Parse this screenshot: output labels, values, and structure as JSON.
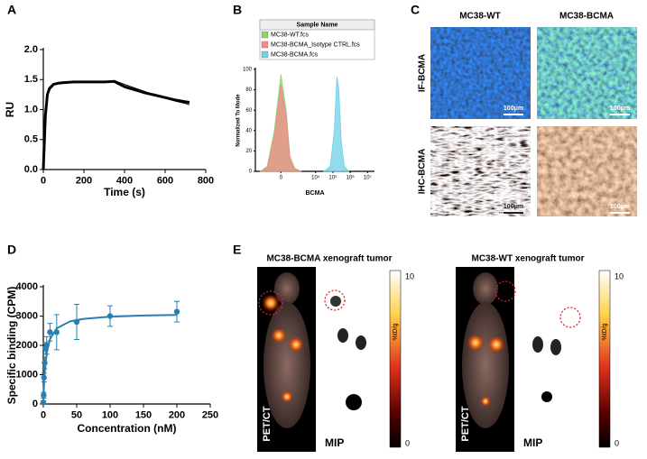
{
  "chart_data": [
    {
      "type": "line",
      "label": "A",
      "xlabel": "Time (s)",
      "ylabel": "RU",
      "x": [
        0,
        10,
        20,
        30,
        50,
        75,
        100,
        150,
        200,
        250,
        300,
        350,
        360,
        400,
        450,
        500,
        550,
        600,
        650,
        700,
        720
      ],
      "series": [
        {
          "color": "#000000",
          "line_width": 3,
          "values": [
            0,
            0.9,
            1.25,
            1.35,
            1.42,
            1.44,
            1.45,
            1.46,
            1.46,
            1.46,
            1.46,
            1.47,
            1.45,
            1.38,
            1.33,
            1.28,
            1.24,
            1.2,
            1.16,
            1.13,
            1.12
          ]
        },
        {
          "color": "#000000",
          "line_width": 1,
          "values": [
            0,
            0.95,
            1.28,
            1.37,
            1.43,
            1.45,
            1.46,
            1.46,
            1.47,
            1.47,
            1.47,
            1.47,
            1.47,
            1.42,
            1.36,
            1.3,
            1.24,
            1.19,
            1.14,
            1.1,
            1.08
          ]
        }
      ],
      "xlim": [
        0,
        800
      ],
      "xticks": [
        0,
        200,
        400,
        600,
        800
      ],
      "ylim": [
        0,
        2.0
      ],
      "yticks": [
        {
          "value": 0,
          "label": "0.0"
        },
        {
          "value": 0.5,
          "label": "0.5"
        },
        {
          "value": 1.0,
          "label": "1.0"
        },
        {
          "value": 1.5,
          "label": "1.5"
        },
        {
          "value": 2.0,
          "label": "2.0"
        }
      ]
    },
    {
      "type": "area",
      "label": "B",
      "xlabel": "BCMA",
      "ylabel": "Normalized To Mode",
      "legend_title": "Sample Name",
      "xscale": "biexponential",
      "series": [
        {
          "name": "MC38-WT.fcs",
          "color": "#8fd16b",
          "x": [
            -1500,
            -600,
            -200,
            0,
            150,
            300,
            600,
            1500
          ],
          "values": [
            0,
            5,
            40,
            95,
            60,
            15,
            3,
            0
          ]
        },
        {
          "name": "MC38-BCMA_Isotype CTRL.fcs",
          "color": "#f08a8a",
          "x": [
            -1500,
            -600,
            -200,
            0,
            150,
            300,
            600,
            1500
          ],
          "values": [
            0,
            4,
            35,
            85,
            55,
            12,
            2,
            0
          ]
        },
        {
          "name": "MC38-BCMA.fcs",
          "color": "#6fd0e8",
          "x": [
            30000,
            70000,
            120000,
            170000,
            220000,
            300000,
            450000,
            800000
          ],
          "values": [
            0,
            5,
            40,
            93,
            80,
            30,
            5,
            0
          ]
        }
      ],
      "xlim": [
        -3000,
        25000000
      ],
      "xticks": [
        0,
        {
          "value": 10000,
          "label": "10⁴"
        },
        {
          "value": 100000,
          "label": "10⁵"
        },
        {
          "value": 1000000,
          "label": "10⁶"
        },
        {
          "value": 10000000,
          "label": "10⁷"
        }
      ],
      "ylim": [
        0,
        100
      ],
      "yticks": [
        0,
        20,
        40,
        60,
        80,
        100
      ]
    },
    {
      "type": "scatter",
      "label": "D",
      "xlabel": "Concentration (nM)",
      "ylabel": "Specific binding (CPM)",
      "series": [
        {
          "color": "#2a7fb0",
          "x": [
            0,
            0.5,
            1,
            2,
            3,
            5,
            10,
            20,
            50,
            100,
            200
          ],
          "values": [
            50,
            300,
            900,
            1400,
            1900,
            2000,
            2450,
            2450,
            2800,
            3000,
            3150
          ],
          "errors": [
            50,
            100,
            150,
            200,
            200,
            300,
            300,
            600,
            600,
            350,
            350
          ]
        },
        {
          "type": "line",
          "color": "#2a7fb0",
          "line_width": 2,
          "x": [
            0,
            1,
            2,
            5,
            10,
            20,
            40,
            60,
            100,
            150,
            200
          ],
          "values": [
            0,
            620,
            1033,
            1722,
            2214,
            2583,
            2818,
            2906,
            2981,
            3020,
            3039
          ]
        }
      ],
      "xlim": [
        0,
        250
      ],
      "xticks": [
        0,
        50,
        100,
        150,
        200,
        250
      ],
      "ylim": [
        0,
        4000
      ],
      "yticks": [
        0,
        1000,
        2000,
        3000,
        4000
      ]
    }
  ],
  "image_panels": {
    "C": {
      "label": "C",
      "columns": [
        "MC38-WT",
        "MC38-BCMA"
      ],
      "rows": [
        "IF-BCMA",
        "IHC-BCMA"
      ],
      "scale_bars": [
        "100μm",
        "100μm",
        "100μm",
        "100μm"
      ]
    },
    "E": {
      "label": "E",
      "groups": [
        {
          "title": "MC38-BCMA xenograft tumor",
          "modality": "PET/CT",
          "mip": "MIP",
          "colorbar": {
            "max": 10,
            "min": 0,
            "unit": "%ID/g"
          }
        },
        {
          "title": "MC38-WT xenograft tumor",
          "modality": "PET/CT",
          "mip": "MIP",
          "colorbar": {
            "max": 10,
            "min": 0,
            "unit": "%ID/g"
          }
        }
      ]
    }
  }
}
